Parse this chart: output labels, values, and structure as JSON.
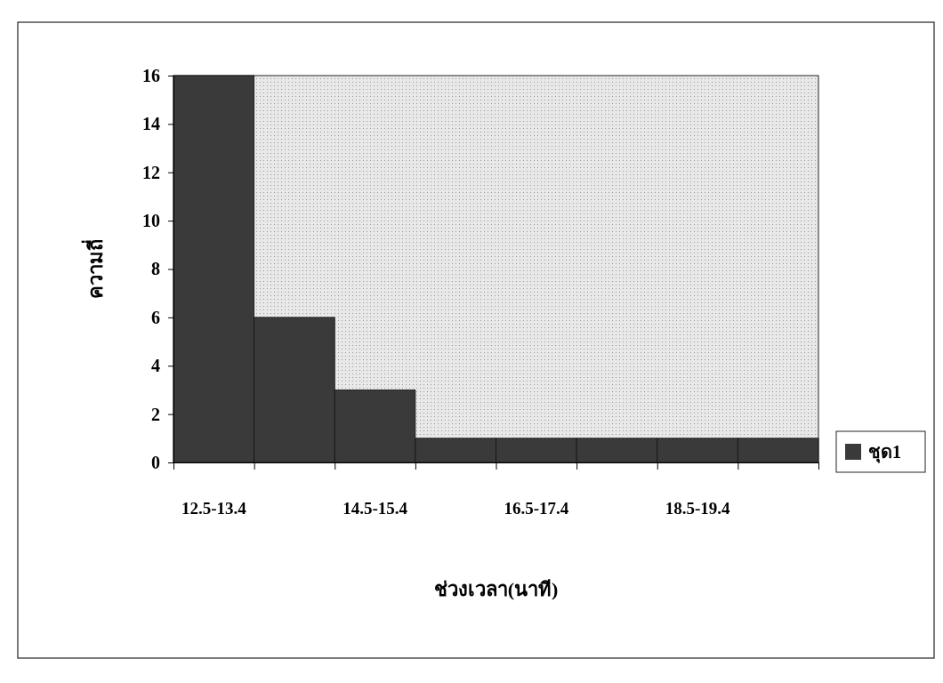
{
  "chart_data": {
    "type": "bar",
    "xlabel": "ช่วงเวลา(นาที)",
    "ylabel": "ความถี่",
    "categories": [
      "12.5-13.4",
      null,
      "14.5-15.4",
      null,
      "16.5-17.4",
      null,
      "18.5-19.4",
      null
    ],
    "series": [
      {
        "name": "ชุด1",
        "color": "#3a3a3a",
        "values": [
          16,
          6,
          3,
          1,
          1,
          1,
          1,
          1
        ]
      }
    ],
    "ylim": [
      0,
      16
    ],
    "yticks": [
      0,
      2,
      4,
      6,
      8,
      10,
      12,
      14,
      16
    ],
    "grid": false,
    "legend": "right"
  }
}
